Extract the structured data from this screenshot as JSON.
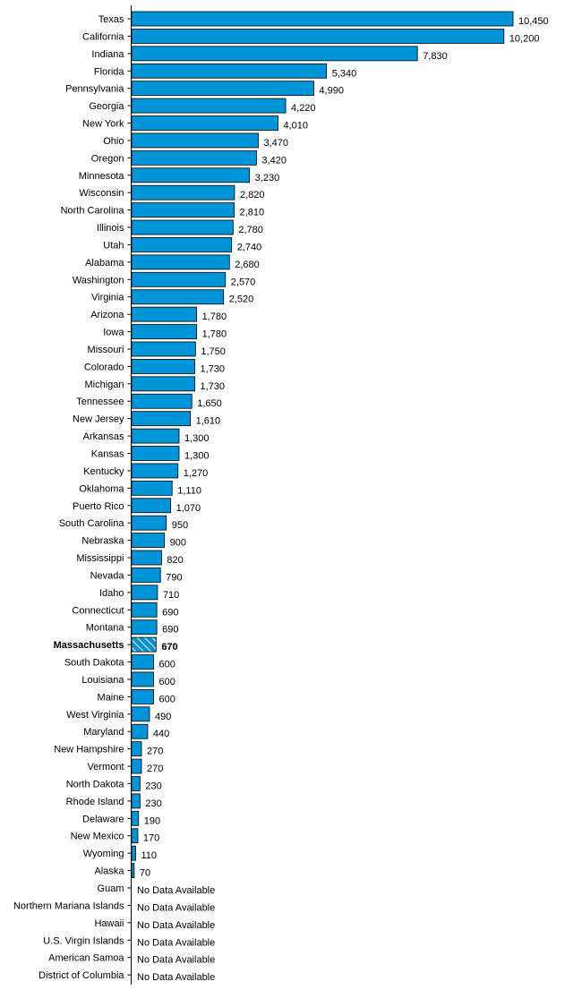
{
  "chart_data": {
    "type": "bar",
    "orientation": "horizontal",
    "title": "",
    "xlabel": "",
    "ylabel": "",
    "grid": false,
    "legend": "none",
    "xlim": [
      0,
      10450
    ],
    "bar_color": "#0095d9",
    "bar_border_color": "#000000",
    "highlight_category": "Massachusetts",
    "missing_label": "No Data Available",
    "categories": [
      "Texas",
      "California",
      "Indiana",
      "Florida",
      "Pennsylvania",
      "Georgia",
      "New York",
      "Ohio",
      "Oregon",
      "Minnesota",
      "Wisconsin",
      "North Carolina",
      "Illinois",
      "Utah",
      "Alabama",
      "Washington",
      "Virginia",
      "Arizona",
      "Iowa",
      "Missouri",
      "Colorado",
      "Michigan",
      "Tennessee",
      "New Jersey",
      "Arkansas",
      "Kansas",
      "Kentucky",
      "Oklahoma",
      "Puerto Rico",
      "South Carolina",
      "Nebraska",
      "Mississippi",
      "Nevada",
      "Idaho",
      "Connecticut",
      "Montana",
      "Massachusetts",
      "South Dakota",
      "Louisiana",
      "Maine",
      "West Virginia",
      "Maryland",
      "New Hampshire",
      "Vermont",
      "North Dakota",
      "Rhode Island",
      "Delaware",
      "New Mexico",
      "Wyoming",
      "Alaska",
      "Guam",
      "Northern Mariana Islands",
      "Hawaii",
      "U.S. Virgin Islands",
      "American Samoa",
      "District of Columbia"
    ],
    "values": [
      10450,
      10200,
      7830,
      5340,
      4990,
      4220,
      4010,
      3470,
      3420,
      3230,
      2820,
      2810,
      2780,
      2740,
      2680,
      2570,
      2520,
      1780,
      1780,
      1750,
      1730,
      1730,
      1650,
      1610,
      1300,
      1300,
      1270,
      1110,
      1070,
      950,
      900,
      820,
      790,
      710,
      690,
      690,
      670,
      600,
      600,
      600,
      490,
      440,
      270,
      270,
      230,
      230,
      190,
      170,
      110,
      70,
      null,
      null,
      null,
      null,
      null,
      null
    ],
    "value_labels": [
      "10,450",
      "10,200",
      "7,830",
      "5,340",
      "4,990",
      "4,220",
      "4,010",
      "3,470",
      "3,420",
      "3,230",
      "2,820",
      "2,810",
      "2,780",
      "2,740",
      "2,680",
      "2,570",
      "2,520",
      "1,780",
      "1,780",
      "1,750",
      "1,730",
      "1,730",
      "1,650",
      "1,610",
      "1,300",
      "1,300",
      "1,270",
      "1,110",
      "1,070",
      "950",
      "900",
      "820",
      "790",
      "710",
      "690",
      "690",
      "670",
      "600",
      "600",
      "600",
      "490",
      "440",
      "270",
      "270",
      "230",
      "230",
      "190",
      "170",
      "110",
      "70",
      "No Data Available",
      "No Data Available",
      "No Data Available",
      "No Data Available",
      "No Data Available",
      "No Data Available"
    ]
  }
}
